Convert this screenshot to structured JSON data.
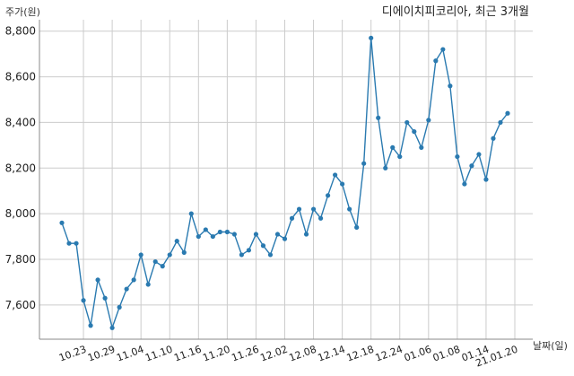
{
  "chart_data": {
    "type": "line",
    "title": "디에이치피코리아, 최근 3개월",
    "ylabel": "주가(원)",
    "xlabel": "날짜(일)",
    "ylim": [
      7450,
      8850
    ],
    "yticks": [
      7600,
      7800,
      8000,
      8200,
      8400,
      8600,
      8800
    ],
    "ytick_labels": [
      "7,600",
      "7,800",
      "8,000",
      "8,200",
      "8,400",
      "8,600",
      "8,800"
    ],
    "xtick_labels": [
      "10.23",
      "10.29",
      "11.04",
      "11.10",
      "11.16",
      "11.20",
      "11.26",
      "12.02",
      "12.08",
      "12.14",
      "12.18",
      "12.24",
      "01.06",
      "01.08",
      "01.14",
      "21.01.20"
    ],
    "xtick_index": [
      3,
      7,
      11,
      15,
      19,
      23,
      27,
      31,
      35,
      39,
      43,
      47,
      51,
      55,
      59,
      63
    ],
    "grid": true,
    "line_color": "#2a7ab0",
    "series": [
      {
        "values": [
          7960,
          7870,
          7870,
          7620,
          7510,
          7710,
          7630,
          7500,
          7590,
          7670,
          7710,
          7820,
          7690,
          7790,
          7770,
          7820,
          7880,
          7830,
          8000,
          7900,
          7930,
          7900,
          7920,
          7920,
          7910,
          7820,
          7840,
          7910,
          7860,
          7820,
          7910,
          7890,
          7980,
          8020,
          7910,
          8020,
          7980,
          8080,
          8170,
          8130,
          8020,
          7940,
          8220,
          8770,
          8420,
          8200,
          8290,
          8250,
          8400,
          8360,
          8290,
          8410,
          8670,
          8720,
          8560,
          8250,
          8130,
          8210,
          8260,
          8150,
          8330,
          8400,
          8440
        ]
      }
    ]
  }
}
